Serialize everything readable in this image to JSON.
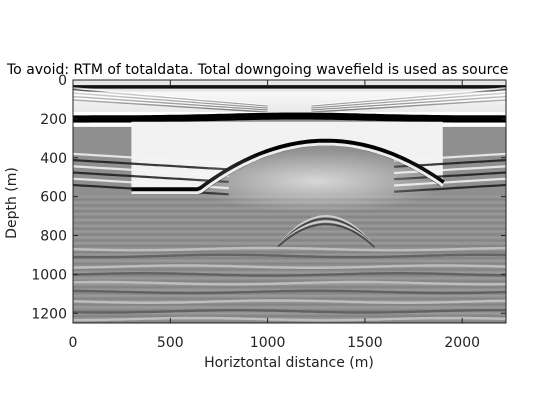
{
  "chart_data": {
    "type": "heatmap",
    "title": "To avoid: RTM of totaldata. Total downgoing wavefield is used as source",
    "xlabel": "Horiztontal distance (m)",
    "ylabel": "Depth (m)",
    "xlim": [
      0,
      2225
    ],
    "ylim": [
      0,
      1250
    ],
    "y_reversed": true,
    "colormap": "gray",
    "x_ticks": [
      0,
      500,
      1000,
      1500,
      2000
    ],
    "y_ticks": [
      0,
      200,
      400,
      600,
      800,
      1000,
      1200
    ],
    "reflectors": [
      {
        "kind": "near-surface band",
        "depth_m": [
          20,
          60
        ],
        "x_m": [
          0,
          2225
        ],
        "polarity": "mixed"
      },
      {
        "kind": "flat strong black",
        "depth_m": 200,
        "x_m": [
          0,
          2225
        ],
        "polarity": "black"
      },
      {
        "kind": "anticline strong black",
        "crest_x_m": 1300,
        "crest_depth_m": 320,
        "limb_depth_m": 570,
        "x_m": [
          300,
          1900
        ],
        "polarity": "black"
      },
      {
        "kind": "dipping events left",
        "depth_m": [
          380,
          560
        ],
        "x_m": [
          0,
          800
        ],
        "polarity": "mixed"
      },
      {
        "kind": "dipping events right",
        "depth_m": [
          380,
          560
        ],
        "x_m": [
          1650,
          2225
        ],
        "polarity": "mixed"
      },
      {
        "kind": "small dome",
        "crest_x_m": 1300,
        "crest_depth_m": 700,
        "base_depth_m": 860,
        "x_m": [
          1050,
          1550
        ],
        "polarity": "mixed"
      },
      {
        "kind": "flat layered events",
        "depth_m": [
          860,
          1250
        ],
        "x_m": [
          0,
          2225
        ],
        "polarity": "mixed"
      }
    ]
  }
}
